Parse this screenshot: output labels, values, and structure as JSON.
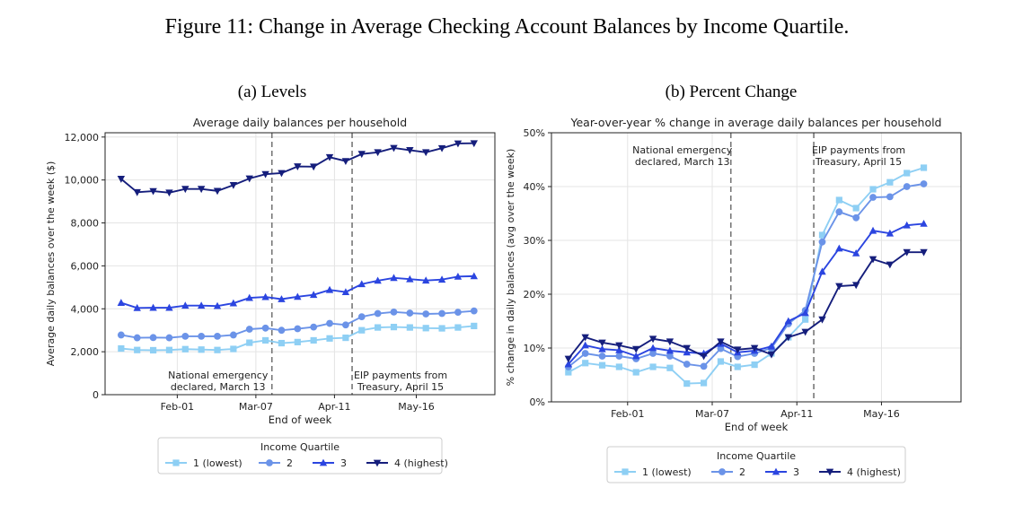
{
  "figure_title": "Figure 11: Change in Average Checking Account Balances by Income Quartile.",
  "panels": [
    {
      "subtitle": "(a) Levels"
    },
    {
      "subtitle": "(b) Percent Change"
    }
  ],
  "colors": {
    "q1": "#8ecff4",
    "q2": "#6b93e8",
    "q3": "#2b45e0",
    "q4": "#151e7c",
    "vline": "#777777",
    "grid": "#e4e4e4"
  },
  "chart_data": [
    {
      "type": "line",
      "title": "Average daily balances per household",
      "xlabel": "End of week",
      "ylabel": "Average daily balances over the week ($)",
      "x": [
        1,
        2,
        3,
        4,
        5,
        6,
        7,
        8,
        9,
        10,
        11,
        12,
        13,
        14,
        15,
        16,
        17,
        18,
        19,
        20,
        21,
        22,
        23
      ],
      "xticks": [
        {
          "x": 4.5,
          "label": "Feb-01"
        },
        {
          "x": 9.4,
          "label": "Mar-07"
        },
        {
          "x": 14.3,
          "label": "Apr-11"
        },
        {
          "x": 19.4,
          "label": "May-16"
        }
      ],
      "xlim": [
        0.0,
        24.3
      ],
      "yticks": [
        0,
        2000,
        4000,
        6000,
        8000,
        10000,
        12000
      ],
      "ytick_labels": [
        "0",
        "2,000",
        "4,000",
        "6,000",
        "8,000",
        "10,000",
        "12,000"
      ],
      "ylim": [
        0,
        12200
      ],
      "vlines": [
        {
          "x": 10.4,
          "label_lines": [
            "National emergency",
            "declared, March 13"
          ],
          "align": "end"
        },
        {
          "x": 15.4,
          "label_lines": [
            "EIP payments from",
            "Treasury, April 15"
          ],
          "align": "start"
        }
      ],
      "series": [
        {
          "name": "1 (lowest)",
          "marker": "square",
          "values": [
            2150,
            2080,
            2070,
            2080,
            2120,
            2100,
            2080,
            2130,
            2420,
            2530,
            2400,
            2450,
            2530,
            2620,
            2650,
            3000,
            3130,
            3150,
            3130,
            3100,
            3090,
            3130,
            3200
          ]
        },
        {
          "name": "2",
          "marker": "circle",
          "values": [
            2780,
            2650,
            2660,
            2650,
            2720,
            2720,
            2720,
            2780,
            3050,
            3100,
            3000,
            3070,
            3150,
            3320,
            3250,
            3630,
            3780,
            3850,
            3800,
            3760,
            3780,
            3840,
            3900
          ]
        },
        {
          "name": "3",
          "marker": "triangle-up",
          "values": [
            4280,
            4040,
            4050,
            4050,
            4150,
            4150,
            4130,
            4260,
            4510,
            4550,
            4450,
            4560,
            4650,
            4880,
            4780,
            5150,
            5310,
            5440,
            5380,
            5320,
            5360,
            5500,
            5520
          ]
        },
        {
          "name": "4 (highest)",
          "marker": "triangle-down",
          "values": [
            10050,
            9430,
            9480,
            9410,
            9580,
            9580,
            9490,
            9760,
            10070,
            10270,
            10320,
            10630,
            10620,
            11060,
            10880,
            11210,
            11290,
            11490,
            11390,
            11290,
            11480,
            11700,
            11710
          ]
        }
      ],
      "legend": {
        "title": "Income Quartile",
        "placement": "below"
      }
    },
    {
      "type": "line",
      "title": "Year-over-year % change in average daily balances per household",
      "xlabel": "End of week",
      "ylabel": "% change in daily balances (avg over the week)",
      "x": [
        1,
        2,
        3,
        4,
        5,
        6,
        7,
        8,
        9,
        10,
        11,
        12,
        13,
        14,
        15,
        16,
        17,
        18,
        19,
        20,
        21,
        22,
        23
      ],
      "xticks": [
        {
          "x": 4.5,
          "label": "Feb-01"
        },
        {
          "x": 9.5,
          "label": "Mar-07"
        },
        {
          "x": 14.5,
          "label": "Apr-11"
        },
        {
          "x": 19.5,
          "label": "May-16"
        }
      ],
      "xlim": [
        0.0,
        24.2
      ],
      "yticks": [
        0,
        10,
        20,
        30,
        40,
        50
      ],
      "ytick_labels": [
        "0%",
        "10%",
        "20%",
        "30%",
        "40%",
        "50%"
      ],
      "ylim": [
        0,
        50
      ],
      "vlines": [
        {
          "x": 10.6,
          "label_lines": [
            "National emergency",
            "declared, March 13"
          ],
          "align": "end"
        },
        {
          "x": 15.5,
          "label_lines": [
            "EIP payments from",
            "Treasury, April 15"
          ],
          "align": "start"
        }
      ],
      "series": [
        {
          "name": "1 (lowest)",
          "marker": "square",
          "values": [
            5.5,
            7.2,
            6.8,
            6.5,
            5.5,
            6.5,
            6.3,
            3.4,
            3.5,
            7.5,
            6.5,
            6.9,
            9.0,
            12.0,
            15.3,
            31.0,
            37.5,
            36.0,
            39.5,
            40.8,
            42.5,
            43.5,
            null
          ]
        },
        {
          "name": "2",
          "marker": "circle",
          "values": [
            6.5,
            9.0,
            8.5,
            8.5,
            8.0,
            9.0,
            8.5,
            7.0,
            6.6,
            9.9,
            8.4,
            9.0,
            10.0,
            14.5,
            17.0,
            29.7,
            35.3,
            34.2,
            38.0,
            38.1,
            40.0,
            40.5,
            null
          ]
        },
        {
          "name": "3",
          "marker": "triangle-up",
          "values": [
            7.0,
            10.5,
            9.8,
            9.6,
            8.5,
            10.0,
            9.5,
            9.2,
            9.0,
            10.8,
            9.2,
            9.5,
            10.3,
            15.0,
            16.5,
            24.2,
            28.5,
            27.6,
            31.8,
            31.3,
            32.8,
            33.1,
            null
          ]
        },
        {
          "name": "4 (highest)",
          "marker": "triangle-down",
          "values": [
            8.0,
            12.0,
            11.0,
            10.5,
            9.8,
            11.7,
            11.2,
            10.0,
            8.5,
            11.2,
            9.7,
            10.0,
            8.8,
            12.0,
            13.0,
            15.3,
            21.5,
            21.7,
            26.5,
            25.5,
            27.8,
            27.8,
            null
          ]
        }
      ],
      "legend": {
        "title": "Income Quartile",
        "placement": "below"
      }
    }
  ]
}
